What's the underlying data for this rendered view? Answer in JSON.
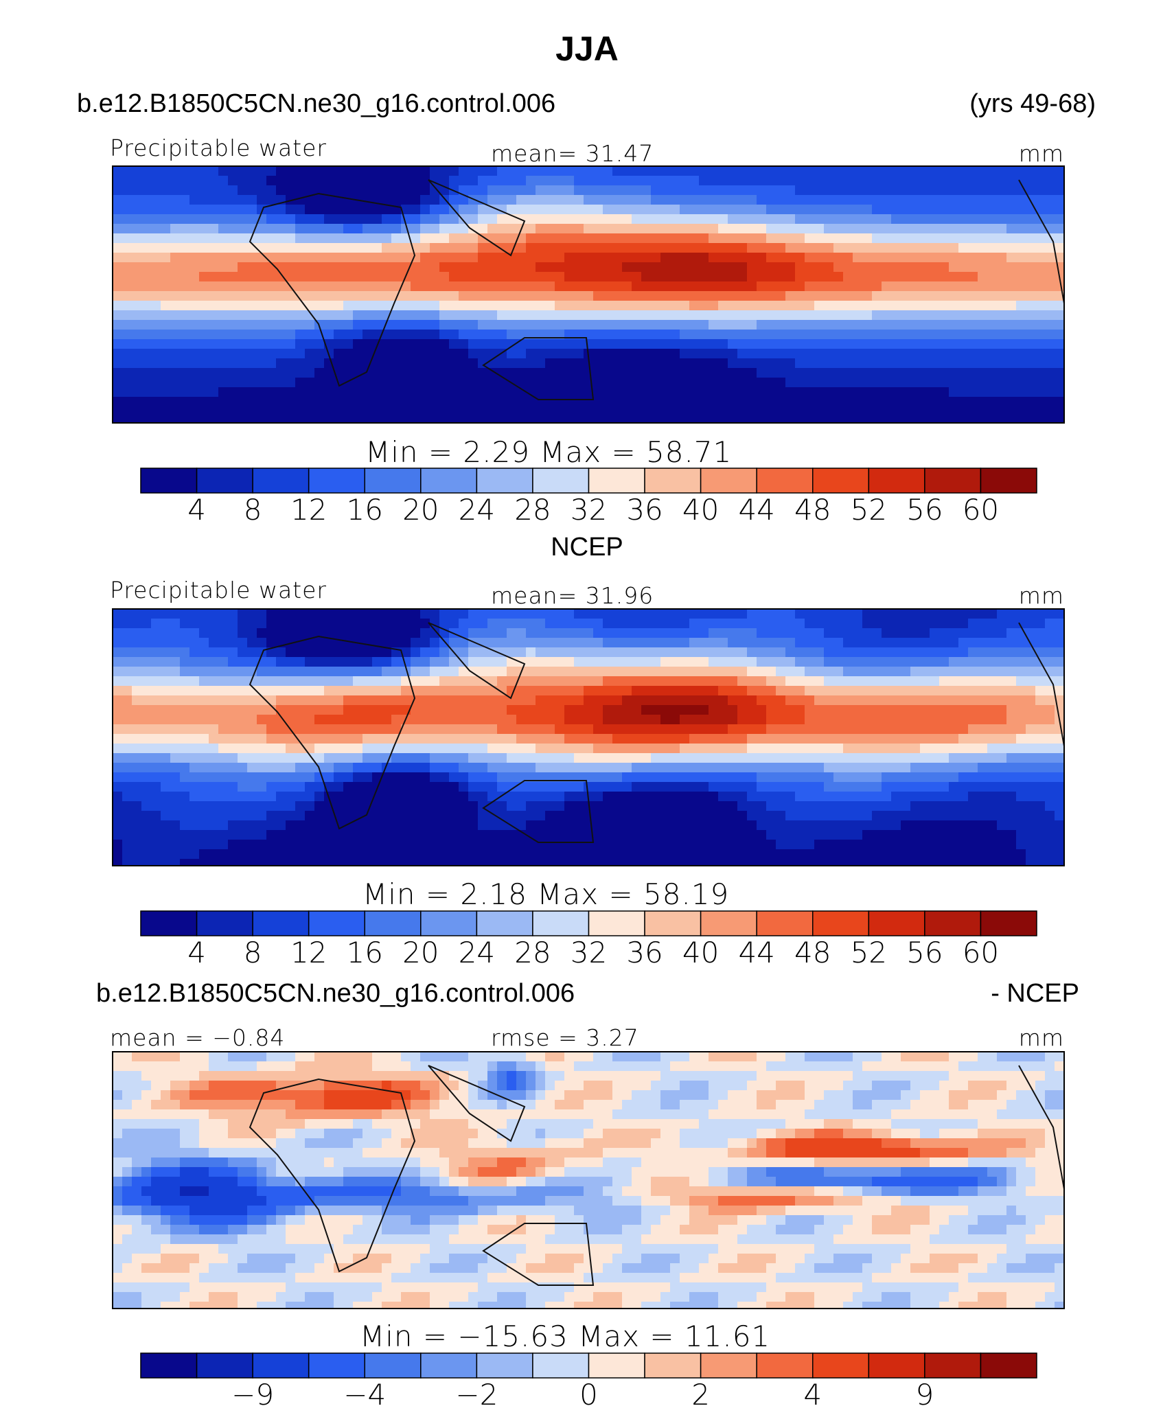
{
  "header": {
    "title": "JJA",
    "case_name": "b.e12.B1850C5CN.ne30_g16.control.006",
    "years": "(yrs 49-68)",
    "ncep_title": "NCEP",
    "diff_case": "b.e12.B1850C5CN.ne30_g16.control.006",
    "diff_suffix": "- NCEP"
  },
  "chart_data": [
    {
      "type": "heatmap",
      "panel": "model",
      "variable": "Precipitable water",
      "units": "mm",
      "mean_label": "mean=   31.47",
      "minmax_label": "Min  =     2.29  Max  =   58.71",
      "stats": {
        "mean": 31.47,
        "min": 2.29,
        "max": 58.71
      },
      "colorbar": {
        "levels": [
          2,
          4,
          6,
          8,
          10,
          12,
          14,
          16,
          18,
          20,
          22,
          24,
          26,
          28,
          30,
          32,
          34,
          36,
          38,
          40,
          42,
          44,
          46,
          48,
          50,
          52,
          54,
          56,
          58,
          60,
          62
        ],
        "tick_labels": [
          "4",
          "8",
          "12",
          "16",
          "20",
          "24",
          "28",
          "32",
          "36",
          "40",
          "44",
          "48",
          "52",
          "56",
          "60"
        ]
      }
    },
    {
      "type": "heatmap",
      "panel": "NCEP",
      "variable": "Precipitable water",
      "units": "mm",
      "mean_label": "mean=   31.96",
      "minmax_label": "Min  =     2.18  Max  =   58.19",
      "stats": {
        "mean": 31.96,
        "min": 2.18,
        "max": 58.19
      },
      "colorbar": {
        "tick_labels": [
          "4",
          "8",
          "12",
          "16",
          "20",
          "24",
          "28",
          "32",
          "36",
          "40",
          "44",
          "48",
          "52",
          "56",
          "60"
        ]
      }
    },
    {
      "type": "heatmap",
      "panel": "difference",
      "units": "mm",
      "mean_label": "mean  =   −0.84",
      "rmse_label": "rmse  =     3.27",
      "minmax_label": "Min  =  −15.63  Max  =   11.61",
      "stats": {
        "mean": -0.84,
        "rmse": 3.27,
        "min": -15.63,
        "max": 11.61
      },
      "colorbar": {
        "tick_labels": [
          "−9",
          "−4",
          "−2",
          "0",
          "2",
          "4",
          "9"
        ]
      }
    }
  ],
  "colors": [
    "#08088c",
    "#0c25b4",
    "#1541d8",
    "#2a5ef0",
    "#4679ec",
    "#6b96f0",
    "#9bb9f4",
    "#c9dbf8",
    "#fde7d8",
    "#f9c1a3",
    "#f79a74",
    "#f2693f",
    "#e8461c",
    "#d22a0f",
    "#b01a0c",
    "#8b0a08"
  ]
}
